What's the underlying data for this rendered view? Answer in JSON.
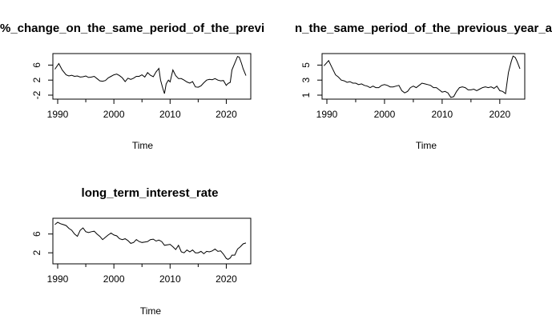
{
  "chart_data": [
    {
      "type": "line",
      "title": "%_change_on_the_same_period_of_the_previous_year",
      "title_visible": "%_change_on_the_same_period_of_the_previ",
      "xlabel": "Time",
      "ylabel": "",
      "xlim": [
        1990,
        2023.5
      ],
      "ylim": [
        -2,
        8
      ],
      "xticks": [
        1990,
        2000,
        2010,
        2020
      ],
      "yticks": [
        -2,
        2,
        6
      ],
      "series": [
        {
          "x": [
            1989.5,
            1990.2,
            1990.8,
            1991.5,
            1992,
            1992.5,
            1993,
            1993.5,
            1994,
            1994.5,
            1995,
            1995.5,
            1996,
            1996.5,
            1997,
            1997.5,
            1998,
            1998.5,
            1999,
            1999.5,
            2000,
            2000.5,
            2001,
            2001.5,
            2002,
            2002.5,
            2003,
            2003.5,
            2004,
            2004.5,
            2005,
            2005.5,
            2006,
            2006.5,
            2007,
            2007.5,
            2008,
            2008.3,
            2008.7,
            2009,
            2009.3,
            2009.7,
            2010,
            2010.5,
            2011,
            2011.5,
            2012,
            2012.5,
            2013,
            2013.5,
            2014,
            2014.5,
            2015,
            2015.5,
            2016,
            2016.5,
            2017,
            2017.5,
            2018,
            2018.5,
            2019,
            2019.5,
            2020,
            2020.3,
            2020.7,
            2021,
            2021.5,
            2022,
            2022.3,
            2022.7,
            2023,
            2023.5
          ],
          "values": [
            4.9,
            6.4,
            4.7,
            3.4,
            3.1,
            3.3,
            3.0,
            3.1,
            2.8,
            2.9,
            3.1,
            2.7,
            2.8,
            3.0,
            2.4,
            1.8,
            1.7,
            1.9,
            2.6,
            3.0,
            3.4,
            3.6,
            3.2,
            2.6,
            1.6,
            2.5,
            2.2,
            2.5,
            3.0,
            3.0,
            3.4,
            2.8,
            4.0,
            3.3,
            2.9,
            4.2,
            5.1,
            2.0,
            -0.2,
            -1.6,
            1.0,
            2.0,
            1.5,
            4.7,
            3.2,
            2.4,
            2.4,
            2.0,
            1.5,
            1.2,
            1.6,
            0.2,
            0.1,
            0.5,
            1.3,
            2.0,
            2.2,
            2.1,
            2.4,
            2.0,
            1.8,
            1.9,
            0.6,
            1.1,
            1.4,
            4.7,
            6.5,
            8.3,
            8.1,
            6.5,
            5.0,
            3.2
          ]
        }
      ]
    },
    {
      "type": "line",
      "title": "on_the_same_period_of_the_previous_year_a",
      "title_visible": "n_the_same_period_of_the_previous_year_a",
      "xlabel": "Time",
      "ylabel": "",
      "xlim": [
        1990,
        2023.5
      ],
      "ylim": [
        1,
        6
      ],
      "xticks": [
        1990,
        2000,
        2010,
        2020
      ],
      "yticks": [
        1,
        3,
        5
      ],
      "series": [
        {
          "x": [
            1989.5,
            1990.3,
            1990.8,
            1991.5,
            1992,
            1992.5,
            1993,
            1993.5,
            1994,
            1994.5,
            1995,
            1995.5,
            1996,
            1996.5,
            1997,
            1997.5,
            1998,
            1998.5,
            1999,
            1999.5,
            2000,
            2000.5,
            2001,
            2001.5,
            2002,
            2002.5,
            2003,
            2003.5,
            2004,
            2004.5,
            2005,
            2005.5,
            2006,
            2006.5,
            2007,
            2007.5,
            2008,
            2008.5,
            2009,
            2009.5,
            2010,
            2010.5,
            2011,
            2011.5,
            2012,
            2012.5,
            2013,
            2013.5,
            2014,
            2014.5,
            2015,
            2015.5,
            2016,
            2016.5,
            2017,
            2017.5,
            2018,
            2018.5,
            2019,
            2019.5,
            2020,
            2020.5,
            2021,
            2021.5,
            2022,
            2022.3,
            2022.7,
            2023,
            2023.5
          ],
          "values": [
            4.9,
            5.6,
            4.8,
            3.7,
            3.4,
            3.0,
            2.9,
            2.7,
            2.8,
            2.6,
            2.6,
            2.4,
            2.5,
            2.3,
            2.2,
            2.0,
            2.2,
            2.0,
            2.0,
            2.3,
            2.4,
            2.3,
            2.1,
            2.1,
            2.2,
            2.3,
            1.6,
            1.3,
            1.5,
            2.0,
            2.2,
            2.0,
            2.3,
            2.6,
            2.5,
            2.4,
            2.3,
            2.0,
            2.0,
            1.7,
            1.4,
            1.5,
            1.3,
            0.7,
            0.8,
            1.5,
            2.0,
            2.1,
            2.0,
            1.7,
            1.7,
            1.8,
            1.6,
            1.8,
            2.0,
            2.1,
            2.0,
            2.1,
            1.9,
            2.2,
            1.6,
            1.5,
            1.2,
            4.0,
            5.5,
            6.2,
            6.0,
            5.5,
            4.5
          ]
        }
      ]
    },
    {
      "type": "line",
      "title": "long_term_interest_rate",
      "xlabel": "Time",
      "ylabel": "",
      "xlim": [
        1990,
        2023.5
      ],
      "ylim": [
        0.5,
        8.5
      ],
      "xticks": [
        1990,
        2000,
        2010,
        2020
      ],
      "yticks": [
        2,
        6
      ],
      "series": [
        {
          "x": [
            1989.5,
            1990,
            1990.5,
            1991,
            1991.5,
            1992,
            1992.5,
            1993,
            1993.5,
            1994,
            1994.5,
            1995,
            1995.5,
            1996,
            1996.5,
            1997,
            1997.5,
            1998,
            1998.5,
            1999,
            1999.5,
            2000,
            2000.5,
            2001,
            2001.5,
            2002,
            2002.5,
            2003,
            2003.5,
            2004,
            2004.5,
            2005,
            2005.5,
            2006,
            2006.5,
            2007,
            2007.5,
            2008,
            2008.5,
            2009,
            2009.5,
            2010,
            2010.5,
            2011,
            2011.5,
            2012,
            2012.5,
            2013,
            2013.5,
            2014,
            2014.5,
            2015,
            2015.5,
            2016,
            2016.5,
            2017,
            2017.5,
            2018,
            2018.5,
            2019,
            2019.5,
            2020,
            2020.3,
            2020.7,
            2021,
            2021.5,
            2022,
            2022.5,
            2023,
            2023.5
          ],
          "values": [
            8.0,
            8.5,
            8.2,
            8.0,
            7.8,
            7.2,
            6.8,
            6.0,
            5.5,
            6.8,
            7.3,
            6.5,
            6.3,
            6.5,
            6.6,
            6.0,
            5.5,
            4.8,
            5.3,
            5.8,
            6.2,
            5.8,
            5.6,
            5.0,
            4.8,
            5.0,
            4.6,
            4.0,
            4.2,
            4.8,
            4.4,
            4.2,
            4.3,
            4.4,
            4.8,
            4.9,
            4.5,
            4.7,
            4.4,
            3.6,
            3.7,
            3.8,
            3.3,
            2.7,
            3.6,
            2.2,
            2.0,
            2.6,
            2.2,
            2.6,
            2.0,
            2.0,
            2.3,
            1.8,
            2.3,
            2.2,
            2.4,
            2.8,
            2.3,
            2.4,
            1.7,
            0.8,
            0.6,
            0.9,
            1.5,
            1.5,
            2.8,
            3.3,
            3.9,
            4.1
          ]
        }
      ]
    }
  ]
}
